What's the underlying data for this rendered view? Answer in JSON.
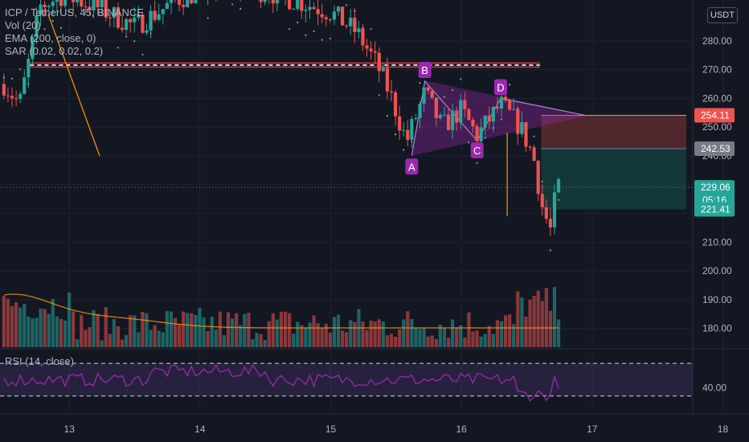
{
  "header": {
    "symbol": "ICP / TetherUS, 45, BINANCE",
    "indicators": [
      "Vol (20)",
      "EMA (200, close, 0)",
      "SAR (0.02, 0.02, 0.2)"
    ],
    "currency": "USDT"
  },
  "rsi": {
    "label": "RSI (14, close)",
    "level_label": "40.00"
  },
  "colors": {
    "up": "#26a69a",
    "down": "#ef5350",
    "pattern": "#9c27b0",
    "ema": "#f23645",
    "vol_ma": "#ff9800",
    "stop": "#5d2a30",
    "target": "#143b3a"
  },
  "chart_data": {
    "type": "candlestick",
    "y_ticks": [
      "280.00",
      "270.00",
      "260.00",
      "250.00",
      "240.00",
      "230.00",
      "220.00",
      "210.00",
      "200.00",
      "190.00",
      "180.00"
    ],
    "y_range": [
      176,
      285
    ],
    "x_ticks": [
      "13",
      "14",
      "15",
      "16",
      "17",
      "18"
    ],
    "x_range": [
      12.47,
      18.2
    ],
    "price_labels": {
      "stop_loss": "254.11",
      "entry": "242.53",
      "last": "229.06",
      "countdown": "05:16",
      "target": "221.41"
    },
    "pattern_points": [
      {
        "label": "A",
        "x": 15.62,
        "y": 240.2
      },
      {
        "label": "B",
        "x": 15.72,
        "y": 266.0
      },
      {
        "label": "C",
        "x": 16.12,
        "y": 245.3
      },
      {
        "label": "D",
        "x": 16.3,
        "y": 260.0
      }
    ],
    "pattern_apex": {
      "x": 16.95,
      "y": 254.1
    },
    "position": {
      "x_start": 16.61,
      "x_end": 17.72,
      "stop": 254.11,
      "entry": 242.53,
      "target": 221.41
    },
    "ema_lines": [
      270.9,
      272.3
    ],
    "ema_x_range": [
      12.7,
      16.6
    ],
    "rsi_levels": [
      70,
      30
    ],
    "rsi_label_value": 40
  }
}
